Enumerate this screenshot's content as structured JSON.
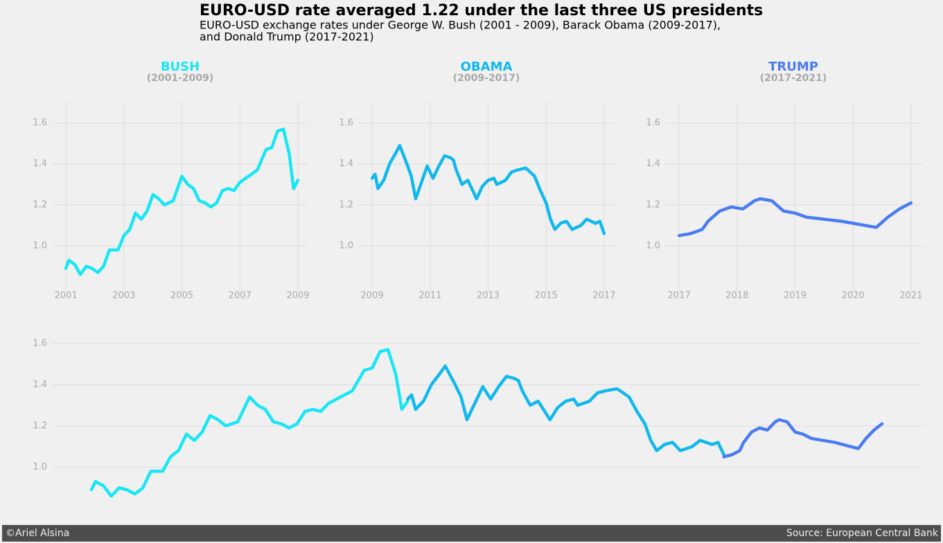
{
  "title": "EURO-USD rate averaged 1.22 under the last three US presidents",
  "subtitle": [
    "EURO-USD exchange rates under George W. Bush (2001 - 2009), Barack Obama (2009-2017),",
    "and Donald Trump (2017-2021)"
  ],
  "footer": {
    "left": "©Ariel Alsina",
    "right": "Source: European Central Bank"
  },
  "chart_data": [
    {
      "type": "line",
      "title": "BUSH",
      "subtitle": "(2001-2009)",
      "color": "#19e6f5",
      "x": [
        2001.0,
        2001.1,
        2001.3,
        2001.5,
        2001.7,
        2001.9,
        2002.1,
        2002.3,
        2002.5,
        2002.8,
        2003.0,
        2003.2,
        2003.4,
        2003.6,
        2003.8,
        2004.0,
        2004.2,
        2004.4,
        2004.7,
        2004.9,
        2005.0,
        2005.2,
        2005.4,
        2005.6,
        2005.8,
        2006.0,
        2006.2,
        2006.4,
        2006.6,
        2006.8,
        2007.0,
        2007.2,
        2007.4,
        2007.6,
        2007.9,
        2008.1,
        2008.3,
        2008.5,
        2008.7,
        2008.85,
        2009.0
      ],
      "values": [
        0.89,
        0.93,
        0.91,
        0.86,
        0.9,
        0.89,
        0.87,
        0.9,
        0.98,
        0.98,
        1.05,
        1.08,
        1.16,
        1.13,
        1.17,
        1.25,
        1.23,
        1.2,
        1.22,
        1.3,
        1.34,
        1.3,
        1.28,
        1.22,
        1.21,
        1.19,
        1.21,
        1.27,
        1.28,
        1.27,
        1.31,
        1.33,
        1.35,
        1.37,
        1.47,
        1.48,
        1.56,
        1.57,
        1.45,
        1.28,
        1.32
      ],
      "xlim": [
        2000.52,
        2009.36
      ],
      "ylim": [
        0.78,
        1.7
      ],
      "xticks": [
        2001,
        2003,
        2005,
        2007,
        2009
      ],
      "yticks": [
        {
          "value": 1,
          "label": "1.0"
        },
        1.2,
        1.4,
        1.6
      ],
      "grid": true
    },
    {
      "type": "line",
      "title": "OBAMA",
      "subtitle": "(2009-2017)",
      "color": "#11b8ee",
      "x": [
        2009.0,
        2009.1,
        2009.2,
        2009.4,
        2009.6,
        2009.8,
        2009.95,
        2010.2,
        2010.35,
        2010.5,
        2010.65,
        2010.8,
        2010.9,
        2011.1,
        2011.3,
        2011.5,
        2011.7,
        2011.8,
        2011.9,
        2012.1,
        2012.3,
        2012.5,
        2012.6,
        2012.8,
        2013.0,
        2013.2,
        2013.3,
        2013.6,
        2013.8,
        2014.0,
        2014.3,
        2014.6,
        2014.8,
        2015.0,
        2015.15,
        2015.3,
        2015.5,
        2015.7,
        2015.9,
        2016.2,
        2016.4,
        2016.7,
        2016.85,
        2017.0
      ],
      "values": [
        1.33,
        1.35,
        1.28,
        1.32,
        1.4,
        1.45,
        1.49,
        1.4,
        1.34,
        1.23,
        1.29,
        1.35,
        1.39,
        1.33,
        1.39,
        1.44,
        1.43,
        1.42,
        1.37,
        1.3,
        1.32,
        1.26,
        1.23,
        1.29,
        1.32,
        1.33,
        1.3,
        1.32,
        1.36,
        1.37,
        1.38,
        1.34,
        1.27,
        1.21,
        1.13,
        1.08,
        1.11,
        1.12,
        1.08,
        1.1,
        1.13,
        1.11,
        1.12,
        1.06
      ],
      "xlim": [
        2008.52,
        2017.36
      ],
      "ylim": [
        0.78,
        1.7
      ],
      "xticks": [
        2009,
        2011,
        2013,
        2015,
        2017
      ],
      "yticks": [
        {
          "value": 1,
          "label": "1.0"
        },
        1.2,
        1.4,
        1.6
      ],
      "grid": true
    },
    {
      "type": "line",
      "title": "TRUMP",
      "subtitle": "(2017-2021)",
      "color": "#4a7bf0",
      "x": [
        2017.0,
        2017.2,
        2017.4,
        2017.5,
        2017.7,
        2017.9,
        2018.1,
        2018.3,
        2018.4,
        2018.6,
        2018.8,
        2019.0,
        2019.2,
        2019.5,
        2019.8,
        2020.0,
        2020.2,
        2020.4,
        2020.6,
        2020.8,
        2021.0
      ],
      "values": [
        1.05,
        1.06,
        1.08,
        1.12,
        1.17,
        1.19,
        1.18,
        1.22,
        1.23,
        1.22,
        1.17,
        1.16,
        1.14,
        1.13,
        1.12,
        1.11,
        1.1,
        1.09,
        1.14,
        1.18,
        1.21
      ],
      "xlim": [
        2016.76,
        2021.18
      ],
      "ylim": [
        0.78,
        1.7
      ],
      "xticks": [
        2017,
        2018,
        2019,
        2020,
        2021
      ],
      "yticks": [
        {
          "value": 1,
          "label": "1.0"
        },
        1.2,
        1.4,
        1.6
      ],
      "grid": true
    },
    {
      "type": "line",
      "xlim": [
        2000,
        2022
      ],
      "ylim": [
        0.78,
        1.7
      ],
      "yticks": [
        {
          "value": 1,
          "label": "1.0"
        },
        1.2,
        1.4,
        1.6
      ],
      "grid": true,
      "series": [
        {
          "color": "#19e6f5",
          "x": [
            2001.0,
            2001.1,
            2001.3,
            2001.5,
            2001.7,
            2001.9,
            2002.1,
            2002.3,
            2002.5,
            2002.8,
            2003.0,
            2003.2,
            2003.4,
            2003.6,
            2003.8,
            2004.0,
            2004.2,
            2004.4,
            2004.7,
            2004.9,
            2005.0,
            2005.2,
            2005.4,
            2005.6,
            2005.8,
            2006.0,
            2006.2,
            2006.4,
            2006.6,
            2006.8,
            2007.0,
            2007.2,
            2007.4,
            2007.6,
            2007.9,
            2008.1,
            2008.3,
            2008.5,
            2008.7,
            2008.85,
            2009.0
          ],
          "values": [
            0.89,
            0.93,
            0.91,
            0.86,
            0.9,
            0.89,
            0.87,
            0.9,
            0.98,
            0.98,
            1.05,
            1.08,
            1.16,
            1.13,
            1.17,
            1.25,
            1.23,
            1.2,
            1.22,
            1.3,
            1.34,
            1.3,
            1.28,
            1.22,
            1.21,
            1.19,
            1.21,
            1.27,
            1.28,
            1.27,
            1.31,
            1.33,
            1.35,
            1.37,
            1.47,
            1.48,
            1.56,
            1.57,
            1.45,
            1.28,
            1.32
          ]
        },
        {
          "color": "#11b8ee",
          "x": [
            2009.0,
            2009.1,
            2009.2,
            2009.4,
            2009.6,
            2009.8,
            2009.95,
            2010.2,
            2010.35,
            2010.5,
            2010.65,
            2010.8,
            2010.9,
            2011.1,
            2011.3,
            2011.5,
            2011.7,
            2011.8,
            2011.9,
            2012.1,
            2012.3,
            2012.5,
            2012.6,
            2012.8,
            2013.0,
            2013.2,
            2013.3,
            2013.6,
            2013.8,
            2014.0,
            2014.3,
            2014.6,
            2014.8,
            2015.0,
            2015.15,
            2015.3,
            2015.5,
            2015.7,
            2015.9,
            2016.2,
            2016.4,
            2016.7,
            2016.85,
            2017.0
          ],
          "values": [
            1.33,
            1.35,
            1.28,
            1.32,
            1.4,
            1.45,
            1.49,
            1.4,
            1.34,
            1.23,
            1.29,
            1.35,
            1.39,
            1.33,
            1.39,
            1.44,
            1.43,
            1.42,
            1.37,
            1.3,
            1.32,
            1.26,
            1.23,
            1.29,
            1.32,
            1.33,
            1.3,
            1.32,
            1.36,
            1.37,
            1.38,
            1.34,
            1.27,
            1.21,
            1.13,
            1.08,
            1.11,
            1.12,
            1.08,
            1.1,
            1.13,
            1.11,
            1.12,
            1.06
          ]
        },
        {
          "color": "#4a7bf0",
          "x": [
            2017.0,
            2017.2,
            2017.4,
            2017.5,
            2017.7,
            2017.9,
            2018.1,
            2018.3,
            2018.4,
            2018.6,
            2018.8,
            2019.0,
            2019.2,
            2019.5,
            2019.8,
            2020.0,
            2020.2,
            2020.4,
            2020.6,
            2020.8,
            2021.0
          ],
          "values": [
            1.05,
            1.06,
            1.08,
            1.12,
            1.17,
            1.19,
            1.18,
            1.22,
            1.23,
            1.22,
            1.17,
            1.16,
            1.14,
            1.13,
            1.12,
            1.11,
            1.1,
            1.09,
            1.14,
            1.18,
            1.21
          ]
        }
      ]
    }
  ]
}
